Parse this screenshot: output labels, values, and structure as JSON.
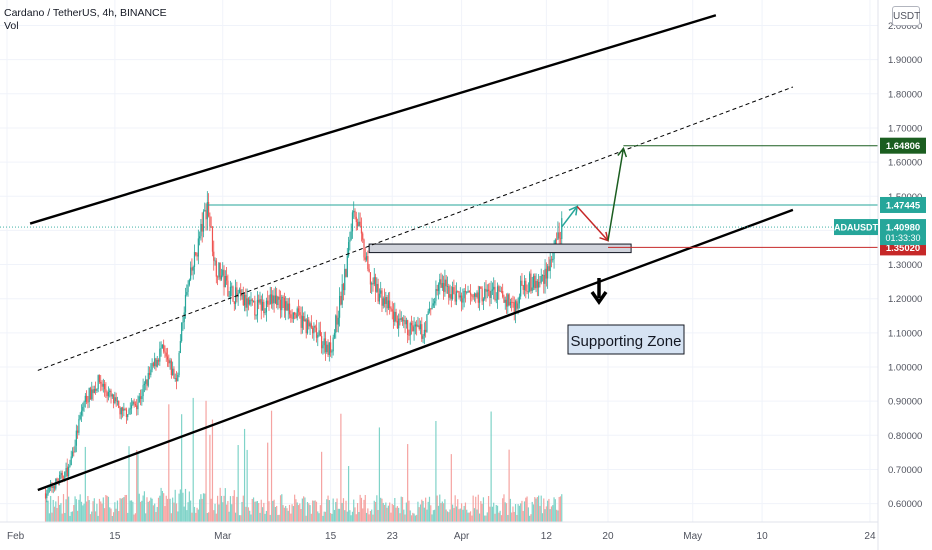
{
  "header": {
    "title": "Cardano / TetherUS, 4h, BINANCE",
    "volume_label": "Vol",
    "currency_badge": "USDT"
  },
  "colors": {
    "up": "#26a69a",
    "down": "#ef5350",
    "volume_up": "#7fd3c8",
    "volume_down": "#f5a3a1",
    "channel": "#000000",
    "resistance_line": "#26a69a",
    "target_green": "#1b5e20",
    "support_red": "#c62828",
    "ticker_badge": "#26a69a"
  },
  "chart_data": {
    "type": "candlestick",
    "symbol": "ADAUSDT",
    "interval": "4h",
    "exchange": "BINANCE",
    "x_ticks": [
      "Feb",
      "15",
      "Mar",
      "15",
      "23",
      "Apr",
      "12",
      "20",
      "May",
      "10",
      "24"
    ],
    "y_ticks": [
      "2.00000",
      "1.90000",
      "1.80000",
      "1.70000",
      "1.60000",
      "1.50000",
      "1.40000",
      "1.30000",
      "1.20000",
      "1.10000",
      "1.00000",
      "0.90000",
      "0.80000",
      "0.70000",
      "0.60000"
    ],
    "ylim": [
      0.56,
      2.03
    ],
    "price_path": [
      [
        "2021-02-06",
        0.63
      ],
      [
        "2021-02-09",
        0.7
      ],
      [
        "2021-02-11",
        0.9
      ],
      [
        "2021-02-13",
        0.96
      ],
      [
        "2021-02-16",
        0.86
      ],
      [
        "2021-02-18",
        0.9
      ],
      [
        "2021-02-21",
        1.05
      ],
      [
        "2021-02-23",
        0.96
      ],
      [
        "2021-02-24",
        1.18
      ],
      [
        "2021-02-26",
        1.38
      ],
      [
        "2021-02-27",
        1.48
      ],
      [
        "2021-02-28",
        1.3
      ],
      [
        "2021-03-02",
        1.22
      ],
      [
        "2021-03-05",
        1.17
      ],
      [
        "2021-03-08",
        1.2
      ],
      [
        "2021-03-12",
        1.12
      ],
      [
        "2021-03-15",
        1.05
      ],
      [
        "2021-03-17",
        1.28
      ],
      [
        "2021-03-18",
        1.48
      ],
      [
        "2021-03-20",
        1.26
      ],
      [
        "2021-03-24",
        1.12
      ],
      [
        "2021-03-27",
        1.1
      ],
      [
        "2021-03-29",
        1.24
      ],
      [
        "2021-04-01",
        1.2
      ],
      [
        "2021-04-05",
        1.22
      ],
      [
        "2021-04-08",
        1.18
      ],
      [
        "2021-04-09",
        1.25
      ],
      [
        "2021-04-11",
        1.24
      ],
      [
        "2021-04-13",
        1.33
      ],
      [
        "2021-04-14",
        1.41
      ]
    ],
    "price_labels": [
      {
        "label": "1.64806",
        "value": 1.64806,
        "role": "target"
      },
      {
        "label": "1.47445",
        "value": 1.47445,
        "role": "resistance"
      },
      {
        "label": "ADAUSDT",
        "value": 1.4098,
        "role": "ticker"
      },
      {
        "label": "1.40980",
        "value": 1.4098,
        "role": "last-price"
      },
      {
        "label": "01:33:30",
        "role": "countdown"
      },
      {
        "label": "1.35020",
        "value": 1.3502,
        "role": "support"
      }
    ],
    "annotations": [
      {
        "text": "Supporting Zone",
        "type": "label"
      },
      {
        "type": "support-zone-box",
        "from": "2021-03-20",
        "to": "2021-04-23",
        "value_range": [
          1.335,
          1.36
        ]
      },
      {
        "type": "channel-upper",
        "from": [
          "2021-02-04",
          1.42
        ],
        "to": [
          "2021-05-04",
          2.03
        ]
      },
      {
        "type": "channel-lower",
        "from": [
          "2021-02-05",
          0.64
        ],
        "to": [
          "2021-05-14",
          1.46
        ]
      },
      {
        "type": "channel-midline-dashed",
        "from": [
          "2021-02-05",
          0.99
        ],
        "to": [
          "2021-05-14",
          1.82
        ]
      },
      {
        "type": "resistance-line",
        "value": 1.47445,
        "from": "2021-02-27"
      },
      {
        "type": "support-line",
        "value": 1.3502,
        "from": "2021-04-20"
      },
      {
        "type": "target-line",
        "value": 1.64806,
        "from": "2021-04-22"
      },
      {
        "type": "projected-path",
        "points": [
          [
            "2021-04-14",
            1.41
          ],
          [
            "2021-04-16",
            1.47
          ],
          [
            "2021-04-20",
            1.37
          ],
          [
            "2021-04-22",
            1.64
          ]
        ]
      },
      {
        "type": "breakdown-arrow",
        "direction": "down"
      }
    ]
  }
}
